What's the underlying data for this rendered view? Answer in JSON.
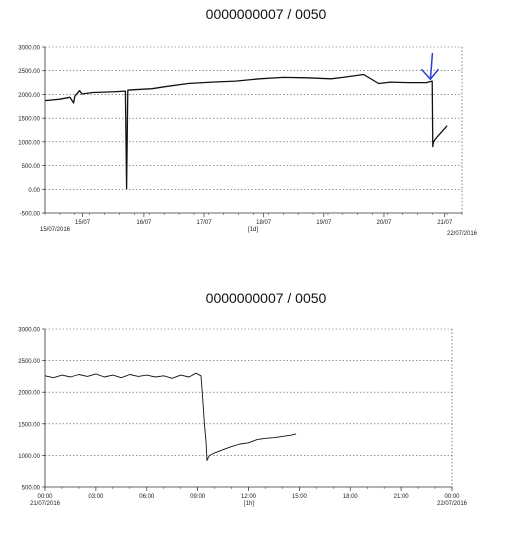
{
  "chart_data": [
    {
      "type": "line",
      "title": "0000000007 / 0050",
      "xlabel": "[1d]",
      "y_ticks": [
        "3000.00",
        "2500.00",
        "2000.00",
        "1500.00",
        "1000.00",
        "500.00",
        "0.00",
        "-500.00"
      ],
      "ylim": [
        -500,
        3000
      ],
      "x_tick_labels": [
        "15/07",
        "16/07",
        "17/07",
        "18/07",
        "19/07",
        "20/07",
        "21/07"
      ],
      "x_start_label": "15/07/2016",
      "x_end_label": "22/07/2016",
      "xlim_days": [
        0,
        7
      ],
      "x_tick_days": [
        0.63,
        1.66,
        2.67,
        3.67,
        4.68,
        5.69,
        6.71
      ],
      "grid": true,
      "series": [
        {
          "x_days": [
            0.0,
            0.25,
            0.42,
            0.48,
            0.5,
            0.58,
            0.62,
            0.8,
            1.0,
            1.2,
            1.35,
            1.37,
            1.39,
            1.5,
            1.8,
            2.0,
            2.4,
            2.8,
            3.2,
            3.6,
            4.0,
            4.4,
            4.8,
            5.0,
            5.35,
            5.6,
            5.8,
            6.1,
            6.4,
            6.5,
            6.51,
            6.52,
            6.58,
            6.65,
            6.75
          ],
          "values": [
            1870,
            1900,
            1940,
            1820,
            1960,
            2080,
            2010,
            2040,
            2050,
            2060,
            2070,
            10,
            2090,
            2100,
            2120,
            2160,
            2230,
            2260,
            2280,
            2330,
            2360,
            2350,
            2330,
            2360,
            2420,
            2230,
            2260,
            2250,
            2250,
            2280,
            900,
            1000,
            1100,
            1200,
            1340
          ]
        }
      ],
      "annotation": "blue arrow pointing down at the drop near 21/07"
    },
    {
      "type": "line",
      "title": "0000000007 / 0050",
      "xlabel": "[1h]",
      "y_ticks": [
        "3000.00",
        "2500.00",
        "2000.00",
        "1500.00",
        "1000.00",
        "500.00"
      ],
      "ylim": [
        500,
        3000
      ],
      "x_tick_labels": [
        "00:00",
        "03:00",
        "06:00",
        "09:00",
        "12:00",
        "15:00",
        "18:00",
        "21:00",
        "00:00"
      ],
      "x_start_label": "21/07/2016",
      "x_end_label": "22/07/2016",
      "xlim_hours": [
        0,
        24
      ],
      "grid": true,
      "series": [
        {
          "x_hours": [
            0.0,
            0.5,
            1.0,
            1.5,
            2.0,
            2.5,
            3.0,
            3.5,
            4.0,
            4.5,
            5.0,
            5.5,
            6.0,
            6.5,
            7.0,
            7.5,
            8.0,
            8.5,
            8.9,
            9.2,
            9.3,
            9.4,
            9.5,
            9.55,
            9.6,
            9.7,
            10.0,
            10.5,
            11.0,
            11.5,
            12.0,
            12.5,
            13.0,
            13.5,
            14.0,
            14.5,
            14.8
          ],
          "values": [
            2260,
            2230,
            2270,
            2240,
            2280,
            2250,
            2290,
            2240,
            2270,
            2230,
            2280,
            2250,
            2270,
            2240,
            2260,
            2220,
            2270,
            2240,
            2300,
            2260,
            1900,
            1500,
            1200,
            920,
            950,
            1000,
            1040,
            1090,
            1140,
            1180,
            1200,
            1250,
            1270,
            1280,
            1300,
            1320,
            1340
          ]
        }
      ]
    }
  ]
}
